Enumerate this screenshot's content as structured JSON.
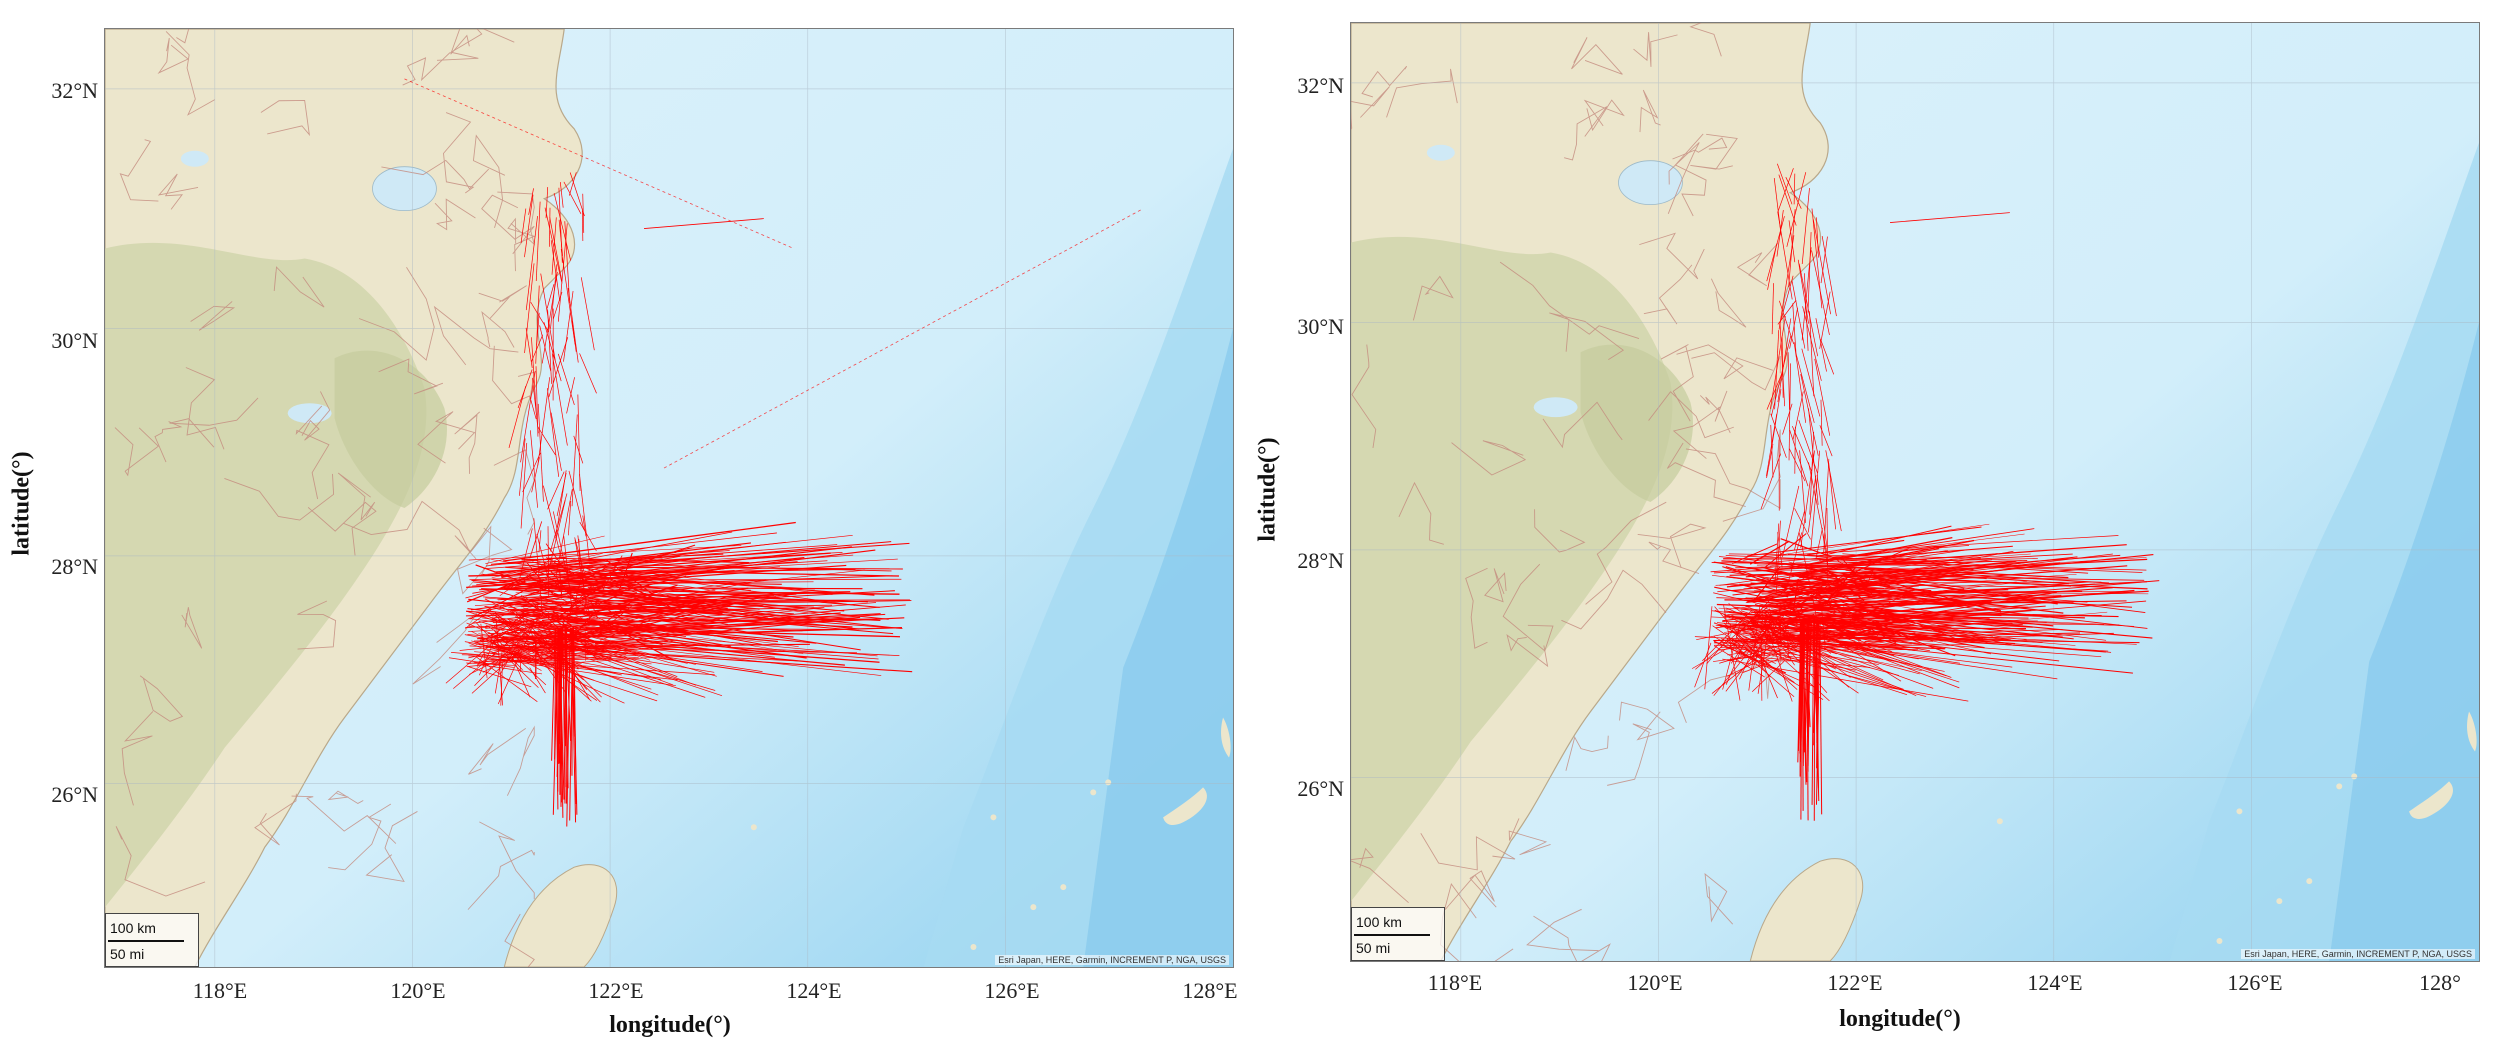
{
  "maps": [
    {
      "x_axis_title": "longitude(°)",
      "y_axis_title": "latitude(°)",
      "lat_ticks": [
        "32°N",
        "30°N",
        "28°N",
        "26°N"
      ],
      "lon_ticks": [
        "118°E",
        "120°E",
        "122°E",
        "124°E",
        "126°E",
        "128°E"
      ],
      "scale_km": "100 km",
      "scale_mi": "50 mi",
      "attribution": "Esri Japan, HERE, Garmin, INCREMENT P, NGA, USGS"
    },
    {
      "x_axis_title": "longitude(°)",
      "y_axis_title": "latitude(°)",
      "lat_ticks": [
        "32°N",
        "30°N",
        "28°N",
        "26°N"
      ],
      "lon_ticks": [
        "118°E",
        "120°E",
        "122°E",
        "124°E",
        "126°E",
        "128°"
      ],
      "scale_km": "100 km",
      "scale_mi": "50 mi",
      "attribution": "Esri Japan, HERE, Garmin, INCREMENT P, NGA, USGS"
    }
  ],
  "colors": {
    "land": "#ece6cc",
    "land_relief": "#cdd3a8",
    "sea_shallow": "#dcf1fb",
    "sea_deep": "#8fd0ef",
    "tracks": "#ff0000",
    "roads": "#c48a7e"
  }
}
